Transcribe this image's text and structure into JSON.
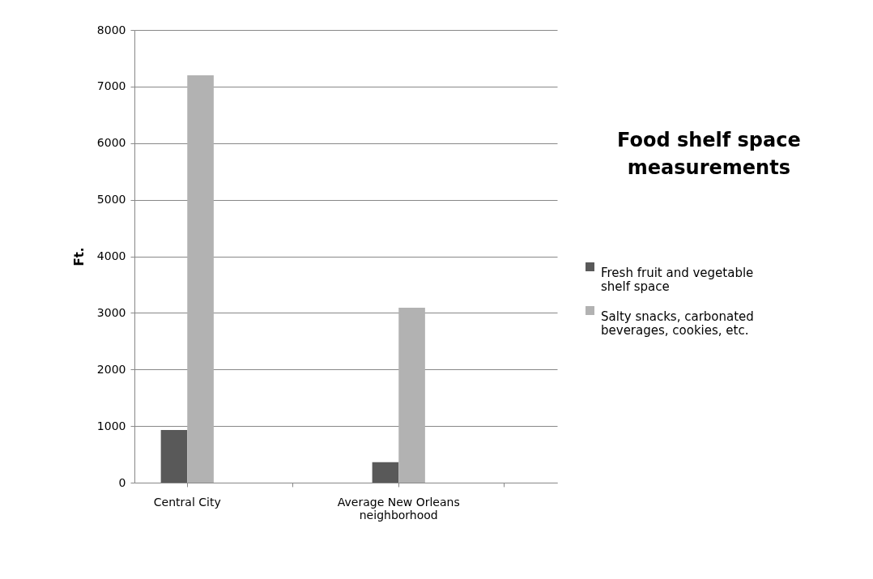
{
  "chart_data": {
    "type": "bar",
    "title": "Food shelf space measurements",
    "ylabel": "Ft.",
    "categories": [
      "Central City",
      null,
      "Average New Orleans neighborhood",
      null
    ],
    "series": [
      {
        "name": "Fresh fruit and vegetable shelf space",
        "color": "#595959",
        "values": [
          930,
          null,
          360,
          null
        ]
      },
      {
        "name": "Salty snacks, carbonated beverages, cookies, etc.",
        "color": "#b2b2b2",
        "values": [
          7200,
          null,
          3090,
          null
        ]
      }
    ],
    "ylim": [
      0,
      8000
    ],
    "yticks": [
      0,
      1000,
      2000,
      3000,
      4000,
      5000,
      6000,
      7000,
      8000
    ],
    "grid": "y",
    "legend": "right"
  }
}
